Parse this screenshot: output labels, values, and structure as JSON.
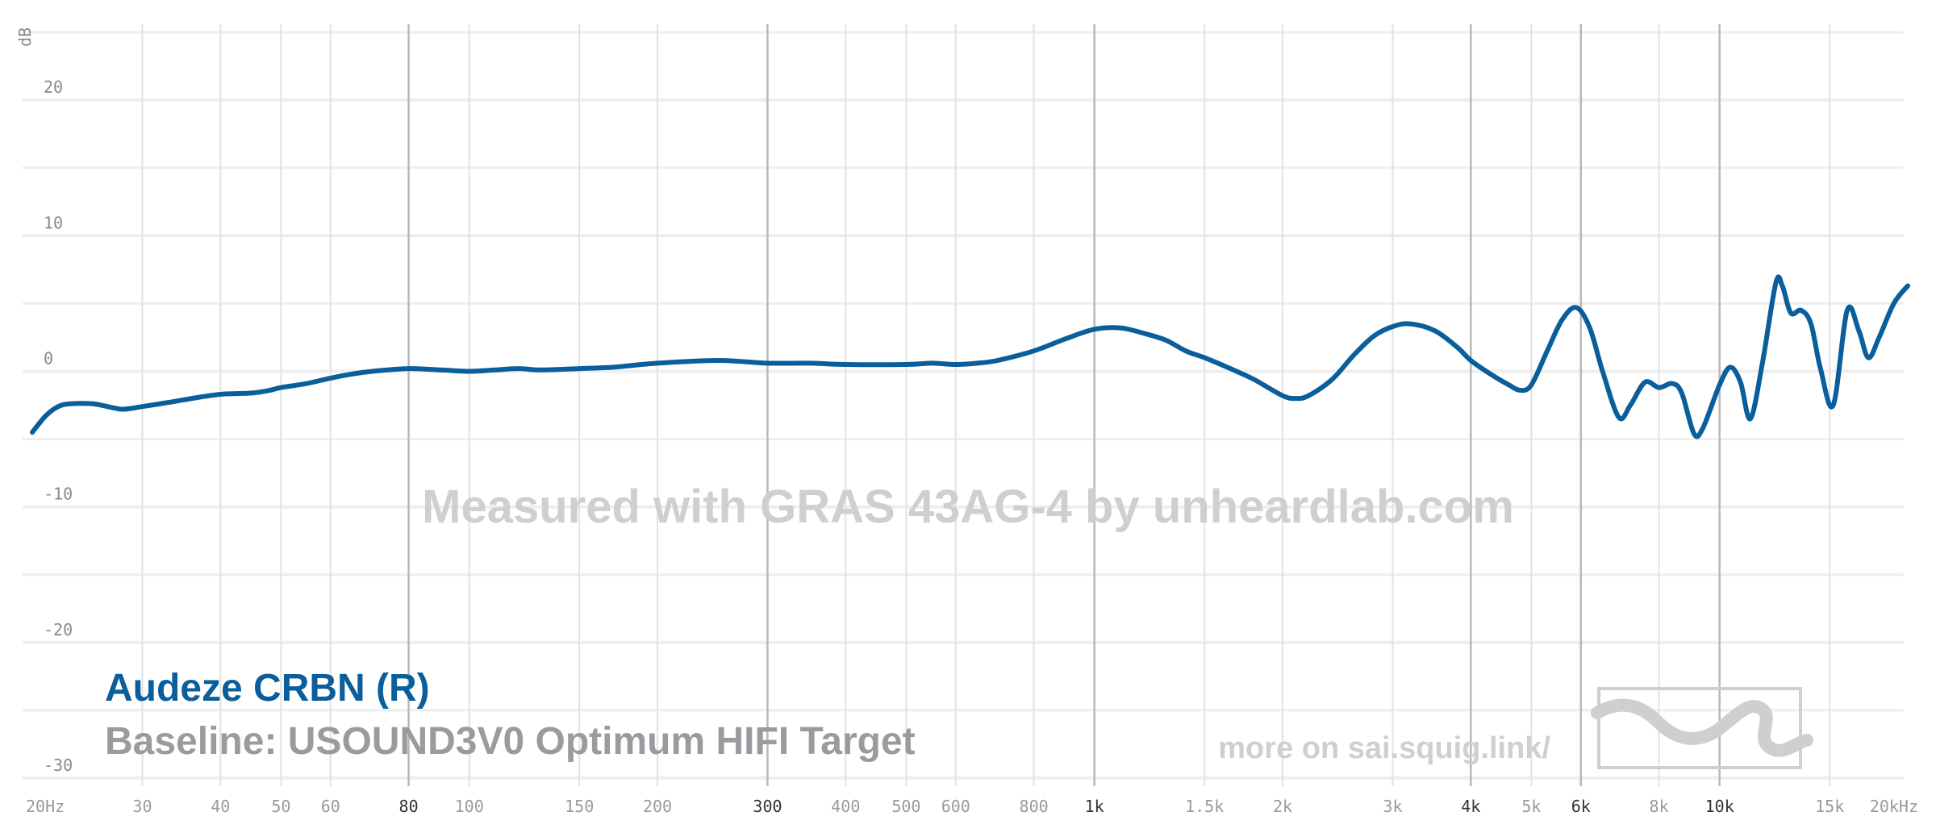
{
  "chart_data": {
    "type": "line",
    "title": "",
    "xlabel": "",
    "ylabel": "dB",
    "x_scale": "log",
    "xlim": [
      20,
      20000
    ],
    "ylim": [
      -30,
      25
    ],
    "grid": true,
    "y_ticks": [
      {
        "value": 20,
        "label": "20"
      },
      {
        "value": 10,
        "label": "10"
      },
      {
        "value": 0,
        "label": "0"
      },
      {
        "value": -10,
        "label": "-10"
      },
      {
        "value": -20,
        "label": "-20"
      },
      {
        "value": -30,
        "label": "-30"
      }
    ],
    "x_ticks": [
      {
        "value": 20,
        "label": "20Hz",
        "major": false
      },
      {
        "value": 30,
        "label": "30",
        "major": false
      },
      {
        "value": 40,
        "label": "40",
        "major": false
      },
      {
        "value": 50,
        "label": "50",
        "major": false
      },
      {
        "value": 60,
        "label": "60",
        "major": false
      },
      {
        "value": 80,
        "label": "80",
        "major": true
      },
      {
        "value": 100,
        "label": "100",
        "major": false
      },
      {
        "value": 150,
        "label": "150",
        "major": false
      },
      {
        "value": 200,
        "label": "200",
        "major": false
      },
      {
        "value": 300,
        "label": "300",
        "major": true
      },
      {
        "value": 400,
        "label": "400",
        "major": false
      },
      {
        "value": 500,
        "label": "500",
        "major": false
      },
      {
        "value": 600,
        "label": "600",
        "major": false
      },
      {
        "value": 800,
        "label": "800",
        "major": false
      },
      {
        "value": 1000,
        "label": "1k",
        "major": true
      },
      {
        "value": 1500,
        "label": "1.5k",
        "major": false
      },
      {
        "value": 2000,
        "label": "2k",
        "major": false
      },
      {
        "value": 3000,
        "label": "3k",
        "major": false
      },
      {
        "value": 4000,
        "label": "4k",
        "major": true
      },
      {
        "value": 5000,
        "label": "5k",
        "major": false
      },
      {
        "value": 6000,
        "label": "6k",
        "major": true
      },
      {
        "value": 8000,
        "label": "8k",
        "major": false
      },
      {
        "value": 10000,
        "label": "10k",
        "major": true
      },
      {
        "value": 15000,
        "label": "15k",
        "major": false
      },
      {
        "value": 20000,
        "label": "20kHz",
        "major": false
      }
    ],
    "series": [
      {
        "name": "Audeze CRBN (R)",
        "color": "#0a5e9c",
        "points": [
          [
            20,
            -4.5
          ],
          [
            21,
            -3.3
          ],
          [
            22,
            -2.6
          ],
          [
            23,
            -2.4
          ],
          [
            25,
            -2.4
          ],
          [
            27,
            -2.7
          ],
          [
            28,
            -2.8
          ],
          [
            30,
            -2.6
          ],
          [
            33,
            -2.3
          ],
          [
            36,
            -2.0
          ],
          [
            40,
            -1.7
          ],
          [
            45,
            -1.6
          ],
          [
            48,
            -1.4
          ],
          [
            50,
            -1.2
          ],
          [
            55,
            -0.9
          ],
          [
            60,
            -0.5
          ],
          [
            65,
            -0.2
          ],
          [
            70,
            0.0
          ],
          [
            80,
            0.2
          ],
          [
            90,
            0.1
          ],
          [
            100,
            0.0
          ],
          [
            110,
            0.1
          ],
          [
            120,
            0.2
          ],
          [
            130,
            0.1
          ],
          [
            150,
            0.2
          ],
          [
            170,
            0.3
          ],
          [
            200,
            0.6
          ],
          [
            250,
            0.8
          ],
          [
            300,
            0.6
          ],
          [
            350,
            0.6
          ],
          [
            400,
            0.5
          ],
          [
            500,
            0.5
          ],
          [
            550,
            0.6
          ],
          [
            600,
            0.5
          ],
          [
            650,
            0.6
          ],
          [
            700,
            0.8
          ],
          [
            800,
            1.5
          ],
          [
            900,
            2.4
          ],
          [
            1000,
            3.1
          ],
          [
            1100,
            3.2
          ],
          [
            1200,
            2.8
          ],
          [
            1300,
            2.3
          ],
          [
            1400,
            1.5
          ],
          [
            1500,
            1.0
          ],
          [
            1650,
            0.2
          ],
          [
            1800,
            -0.6
          ],
          [
            2000,
            -1.8
          ],
          [
            2100,
            -2.0
          ],
          [
            2200,
            -1.8
          ],
          [
            2400,
            -0.6
          ],
          [
            2600,
            1.2
          ],
          [
            2800,
            2.6
          ],
          [
            3000,
            3.3
          ],
          [
            3200,
            3.5
          ],
          [
            3500,
            3.0
          ],
          [
            3800,
            1.8
          ],
          [
            4000,
            0.8
          ],
          [
            4300,
            -0.2
          ],
          [
            4600,
            -1.0
          ],
          [
            4800,
            -1.4
          ],
          [
            5000,
            -1.0
          ],
          [
            5300,
            1.5
          ],
          [
            5600,
            3.8
          ],
          [
            5900,
            4.7
          ],
          [
            6200,
            3.2
          ],
          [
            6500,
            0.0
          ],
          [
            6900,
            -3.4
          ],
          [
            7200,
            -2.5
          ],
          [
            7600,
            -0.8
          ],
          [
            8000,
            -1.2
          ],
          [
            8400,
            -0.9
          ],
          [
            8700,
            -1.6
          ],
          [
            9100,
            -4.6
          ],
          [
            9400,
            -4.2
          ],
          [
            10000,
            -1.0
          ],
          [
            10400,
            0.3
          ],
          [
            10800,
            -0.8
          ],
          [
            11200,
            -3.5
          ],
          [
            11700,
            0.5
          ],
          [
            12300,
            6.5
          ],
          [
            12600,
            6.3
          ],
          [
            13000,
            4.3
          ],
          [
            13500,
            4.5
          ],
          [
            14000,
            3.5
          ],
          [
            14500,
            0.2
          ],
          [
            15200,
            -2.5
          ],
          [
            16000,
            4.5
          ],
          [
            16700,
            3.0
          ],
          [
            17300,
            1.0
          ],
          [
            18000,
            2.5
          ],
          [
            19000,
            5.0
          ],
          [
            20000,
            6.3
          ]
        ]
      }
    ]
  },
  "watermark": "Measured with GRAS 43AG-4 by unheardlab.com",
  "legend": {
    "series_label": "Audeze CRBN (R)",
    "baseline_label": "Baseline: USOUND3V0 Optimum HIFI Target"
  },
  "footer_link": "more on sai.squig.link/",
  "logo_icon": "squiglink-wave-logo-icon"
}
